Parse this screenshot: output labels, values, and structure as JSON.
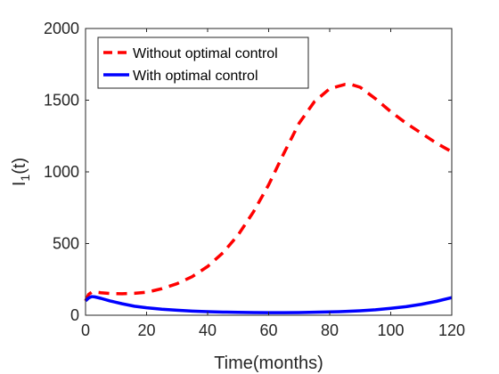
{
  "chart_data": {
    "type": "line",
    "xlabel": "Time(months)",
    "ylabel_main": "I",
    "ylabel_sub": "1",
    "ylabel_suffix": "(t)",
    "xlim": [
      0,
      120
    ],
    "ylim": [
      0,
      2000
    ],
    "xticks": [
      0,
      20,
      40,
      60,
      80,
      100,
      120
    ],
    "yticks": [
      0,
      500,
      1000,
      1500,
      2000
    ],
    "grid": false,
    "legend_position": "top-left",
    "series": [
      {
        "name": "Without optimal control",
        "color": "#ff0000",
        "style": "dashed",
        "x": [
          0,
          1,
          2,
          3,
          5,
          8,
          12,
          16,
          20,
          25,
          30,
          35,
          40,
          45,
          50,
          55,
          60,
          65,
          70,
          75,
          80,
          85,
          87,
          90,
          95,
          100,
          105,
          110,
          115,
          120
        ],
        "y": [
          100,
          145,
          160,
          162,
          157,
          152,
          150,
          153,
          160,
          185,
          220,
          270,
          340,
          435,
          560,
          720,
          910,
          1130,
          1340,
          1490,
          1580,
          1610,
          1610,
          1590,
          1510,
          1420,
          1340,
          1270,
          1200,
          1140
        ]
      },
      {
        "name": "With optimal control",
        "color": "#0000ff",
        "style": "solid",
        "x": [
          0,
          1,
          2,
          3,
          5,
          8,
          12,
          16,
          20,
          25,
          30,
          35,
          40,
          45,
          50,
          55,
          60,
          65,
          70,
          75,
          80,
          85,
          90,
          95,
          100,
          105,
          110,
          115,
          120
        ],
        "y": [
          100,
          120,
          130,
          128,
          118,
          100,
          80,
          63,
          52,
          42,
          35,
          29,
          25,
          22,
          20,
          19,
          18,
          18,
          19,
          21,
          23,
          26,
          31,
          38,
          48,
          60,
          76,
          97,
          123
        ]
      }
    ]
  }
}
